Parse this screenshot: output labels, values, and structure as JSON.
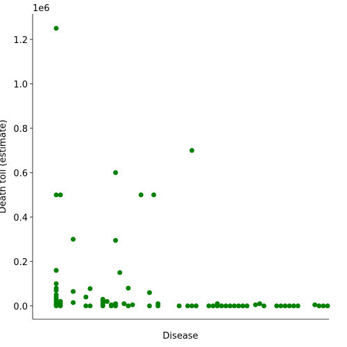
{
  "chart_data": {
    "type": "strip",
    "x_label": "Disease",
    "y_label": "Death toll (estimate)",
    "y_offset_label": "1e6",
    "color": "#008000",
    "categories": [
      null,
      null,
      null,
      null,
      null,
      null,
      null,
      null,
      null,
      null,
      null,
      null,
      null,
      null,
      null,
      null,
      null,
      null,
      null,
      null,
      null,
      null,
      null,
      null,
      null,
      null,
      null,
      null,
      null,
      null,
      null,
      null,
      null,
      null,
      null,
      null,
      null,
      null,
      null,
      null,
      null,
      null,
      null,
      null,
      null,
      null,
      null,
      null,
      null,
      null,
      null,
      null,
      null,
      null,
      null,
      null,
      null,
      null,
      null,
      null,
      null,
      null,
      null,
      null,
      null
    ],
    "values": [
      [
        1.25,
        0.5,
        0.16,
        0.1,
        0.08,
        0.07,
        0.05,
        0.04,
        0.03,
        0.02,
        0.01,
        0.005,
        0
      ],
      [
        0.5,
        0.02,
        0.01,
        0
      ],
      [],
      [],
      [
        0.3,
        0.065,
        0.015
      ],
      [],
      [],
      [
        0.04,
        0
      ],
      [
        0.078,
        0
      ],
      [],
      [],
      [
        0.03,
        0.02,
        0.01,
        0
      ],
      [
        0.02
      ],
      [
        0.005,
        0
      ],
      [
        0.6,
        0.295,
        0.01,
        0
      ],
      [
        0.15
      ],
      [
        0.01
      ],
      [
        0.08,
        0
      ],
      [
        0.005
      ],
      [],
      [
        0.5
      ],
      [],
      [
        0.06,
        0
      ],
      [
        0.5
      ],
      [
        0.01,
        0
      ],
      [],
      [],
      [],
      [],
      [
        0
      ],
      [],
      [
        0
      ],
      [
        0.7,
        0
      ],
      [
        0
      ],
      [],
      [],
      [
        0
      ],
      [
        0
      ],
      [
        0.01,
        0
      ],
      [
        0
      ],
      [
        0
      ],
      [
        0
      ],
      [
        0
      ],
      [
        0
      ],
      [
        0
      ],
      [
        0
      ],
      [],
      [
        0.005
      ],
      [
        0.01
      ],
      [
        0
      ],
      [],
      [],
      [
        0
      ],
      [
        0
      ],
      [
        0
      ],
      [
        0
      ],
      [
        0
      ],
      [
        0
      ],
      [],
      [],
      [],
      [
        0.005
      ],
      [
        0
      ],
      [
        0
      ],
      [
        0
      ]
    ],
    "ylim": [
      -0.06,
      1.315
    ],
    "yticks": [
      {
        "value": 0,
        "label": "0.0"
      },
      0.2,
      0.4,
      0.6,
      0.8,
      {
        "value": 1,
        "label": "1.0"
      },
      1.2
    ]
  }
}
